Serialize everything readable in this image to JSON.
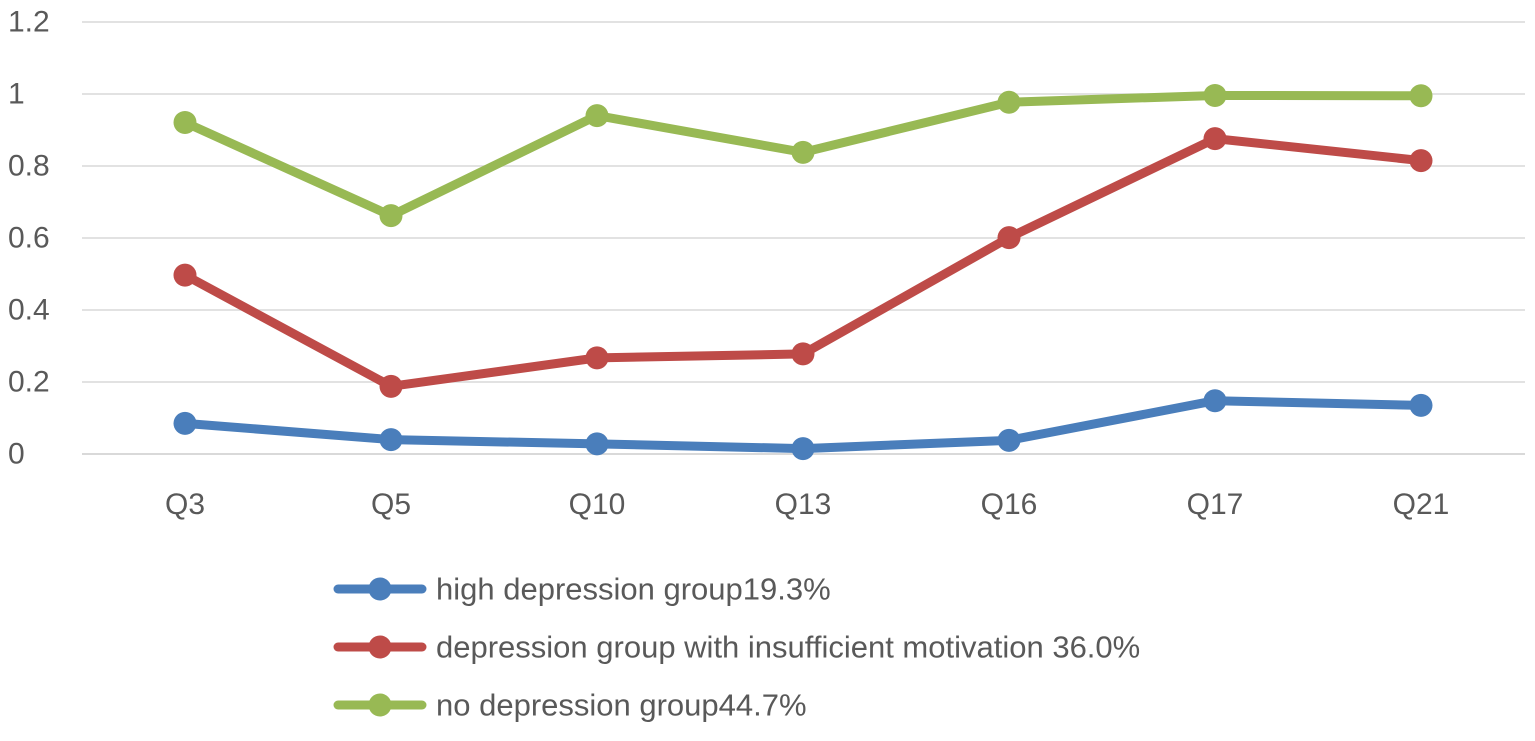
{
  "chart_data": {
    "type": "line",
    "title": "",
    "xlabel": "",
    "ylabel": "",
    "categories": [
      "Q3",
      "Q5",
      "Q10",
      "Q13",
      "Q16",
      "Q17",
      "Q21"
    ],
    "ylim": [
      0,
      1.2
    ],
    "yticks": [
      0,
      0.2,
      0.4,
      0.6,
      0.8,
      1,
      1.2
    ],
    "ytick_labels": [
      "0",
      "0.2",
      "0.4",
      "0.6",
      "0.8",
      "1",
      "1.2"
    ],
    "grid": true,
    "legend_position": "bottom",
    "series": [
      {
        "name": "high depression group19.3%",
        "color": "#4a7ebb",
        "values": [
          0.085,
          0.04,
          0.028,
          0.015,
          0.038,
          0.148,
          0.135
        ]
      },
      {
        "name": "depression group with insufficient motivation 36.0%",
        "color": "#be4b48",
        "values": [
          0.497,
          0.188,
          0.267,
          0.278,
          0.601,
          0.876,
          0.815
        ]
      },
      {
        "name": "no depression group44.7%",
        "color": "#98b954",
        "values": [
          0.921,
          0.662,
          0.94,
          0.838,
          0.977,
          0.996,
          0.995
        ]
      }
    ],
    "colors": {
      "grid": "#d9d9d9",
      "text": "#595959"
    }
  }
}
